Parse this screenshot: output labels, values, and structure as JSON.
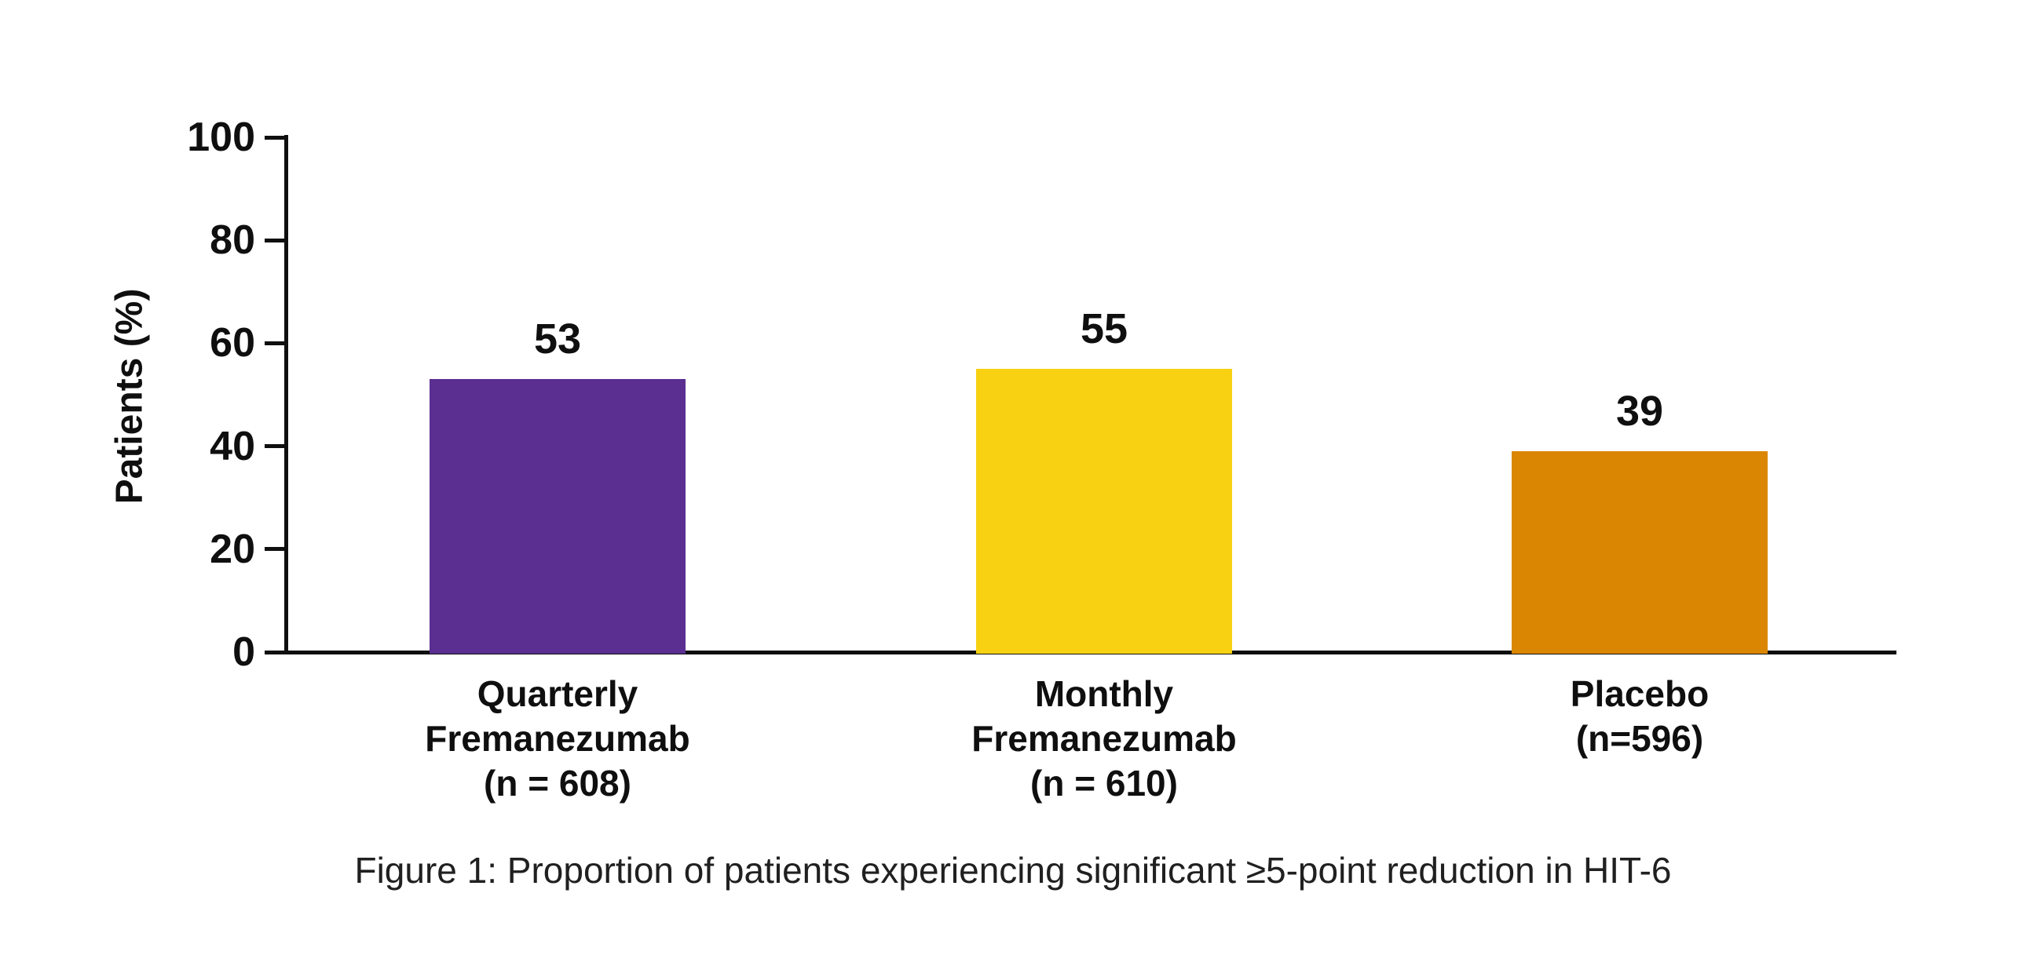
{
  "figure": {
    "caption": "Figure 1: Proportion of patients experiencing significant ≥5-point reduction in HIT-6"
  },
  "chart_data": {
    "type": "bar",
    "title": "",
    "xlabel": "",
    "ylabel": "Patients (%)",
    "ylim": [
      0,
      100
    ],
    "yticks": [
      0,
      20,
      40,
      60,
      80,
      100
    ],
    "grid": false,
    "legend": "none",
    "categories": [
      "Quarterly Fremanezumab (n = 608)",
      "Monthly Fremanezumab (n = 610)",
      "Placebo (n=596)"
    ],
    "category_lines": [
      [
        "Quarterly",
        "Fremanezumab",
        "(n = 608)"
      ],
      [
        "Monthly",
        "Fremanezumab",
        "(n = 610)"
      ],
      [
        "Placebo",
        "(n=596)"
      ]
    ],
    "values": [
      53,
      55,
      39
    ],
    "value_labels": [
      "53",
      "55",
      "39"
    ],
    "bar_colors": [
      "#5b2f92",
      "#f7d112",
      "#db8602"
    ],
    "axis_color": "#0f0f0f"
  }
}
